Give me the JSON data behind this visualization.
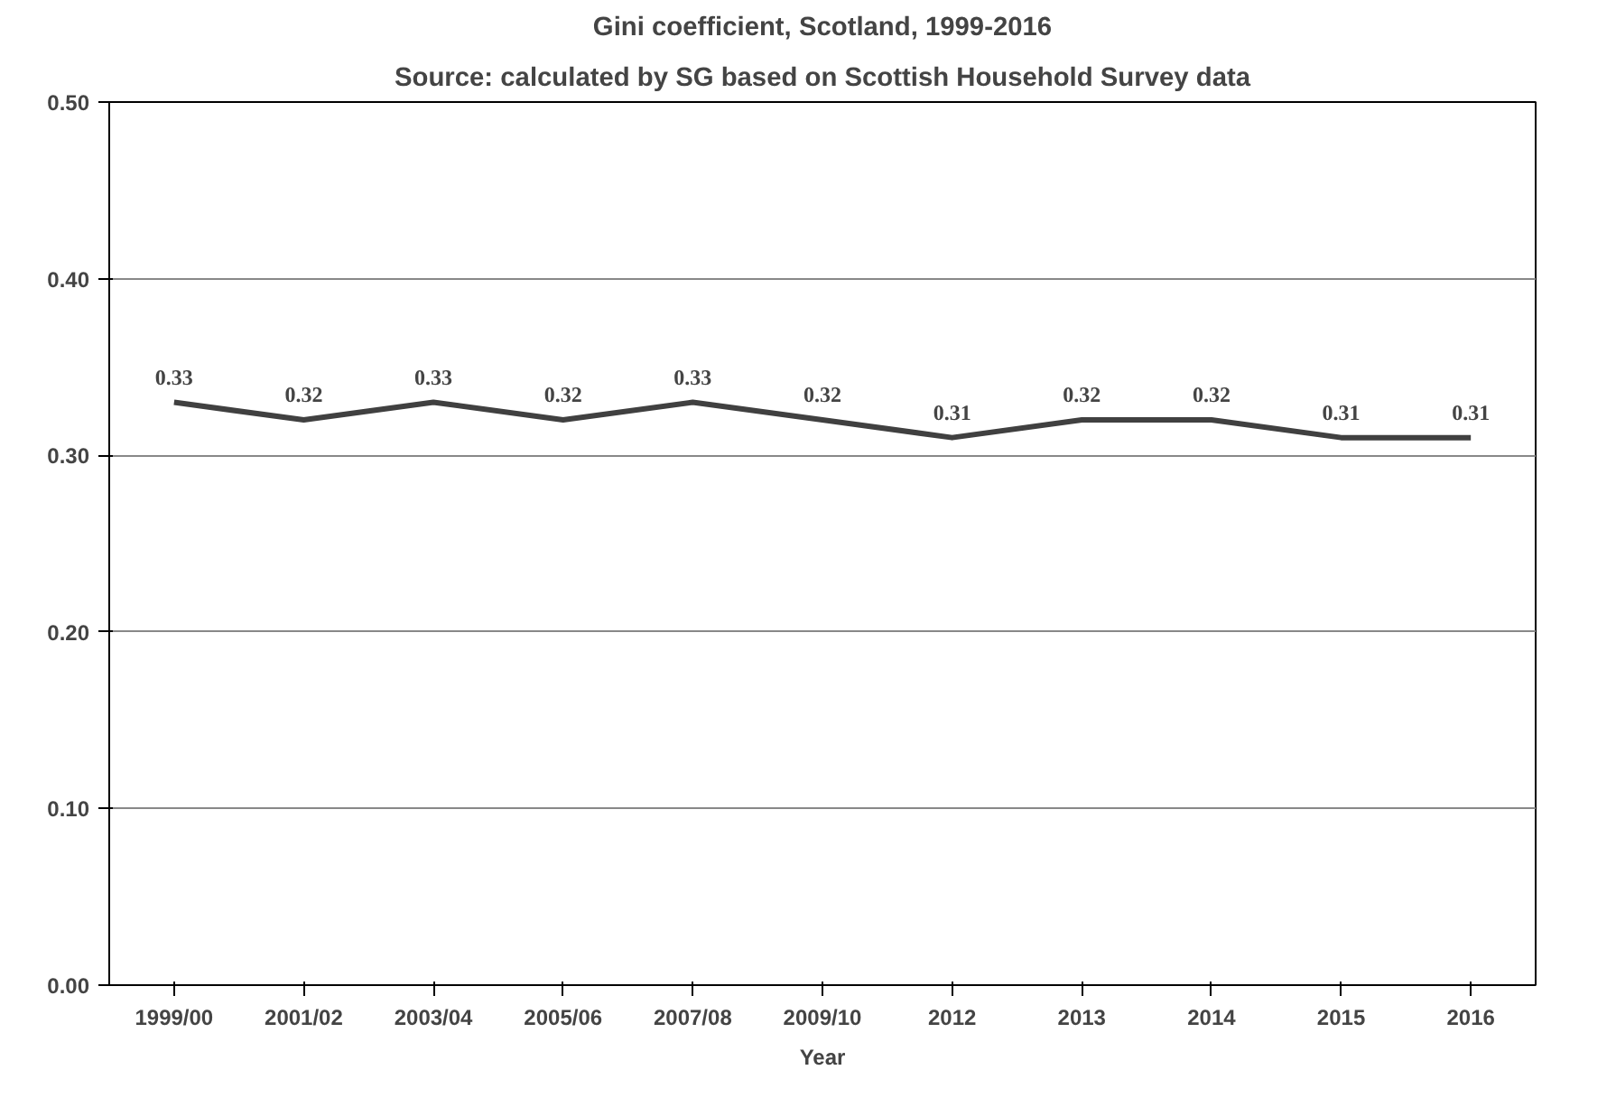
{
  "chart_data": {
    "type": "line",
    "title": "Gini coefficient, Scotland, 1999-2016",
    "subtitle": "Source: calculated by SG based on Scottish Household Survey data",
    "xlabel": "Year",
    "categories": [
      "1999/00",
      "2001/02",
      "2003/04",
      "2005/06",
      "2007/08",
      "2009/10",
      "2012",
      "2013",
      "2014",
      "2015",
      "2016"
    ],
    "series": [
      {
        "color": "#404040",
        "values": [
          0.33,
          0.32,
          0.33,
          0.32,
          0.33,
          0.32,
          0.31,
          0.32,
          0.32,
          0.31,
          0.31
        ]
      }
    ],
    "ylim": [
      0,
      0.5
    ],
    "yticks": [
      {
        "value": 0,
        "label": "0.00"
      },
      {
        "value": 0.1,
        "label": "0.10"
      },
      {
        "value": 0.2,
        "label": "0.20"
      },
      {
        "value": 0.3,
        "label": "0.30"
      },
      {
        "value": 0.4,
        "label": "0.40"
      },
      {
        "value": 0.5,
        "label": "0.50"
      }
    ],
    "grid": "y",
    "data_labels": true,
    "marker": "none",
    "line_style": "solid"
  }
}
